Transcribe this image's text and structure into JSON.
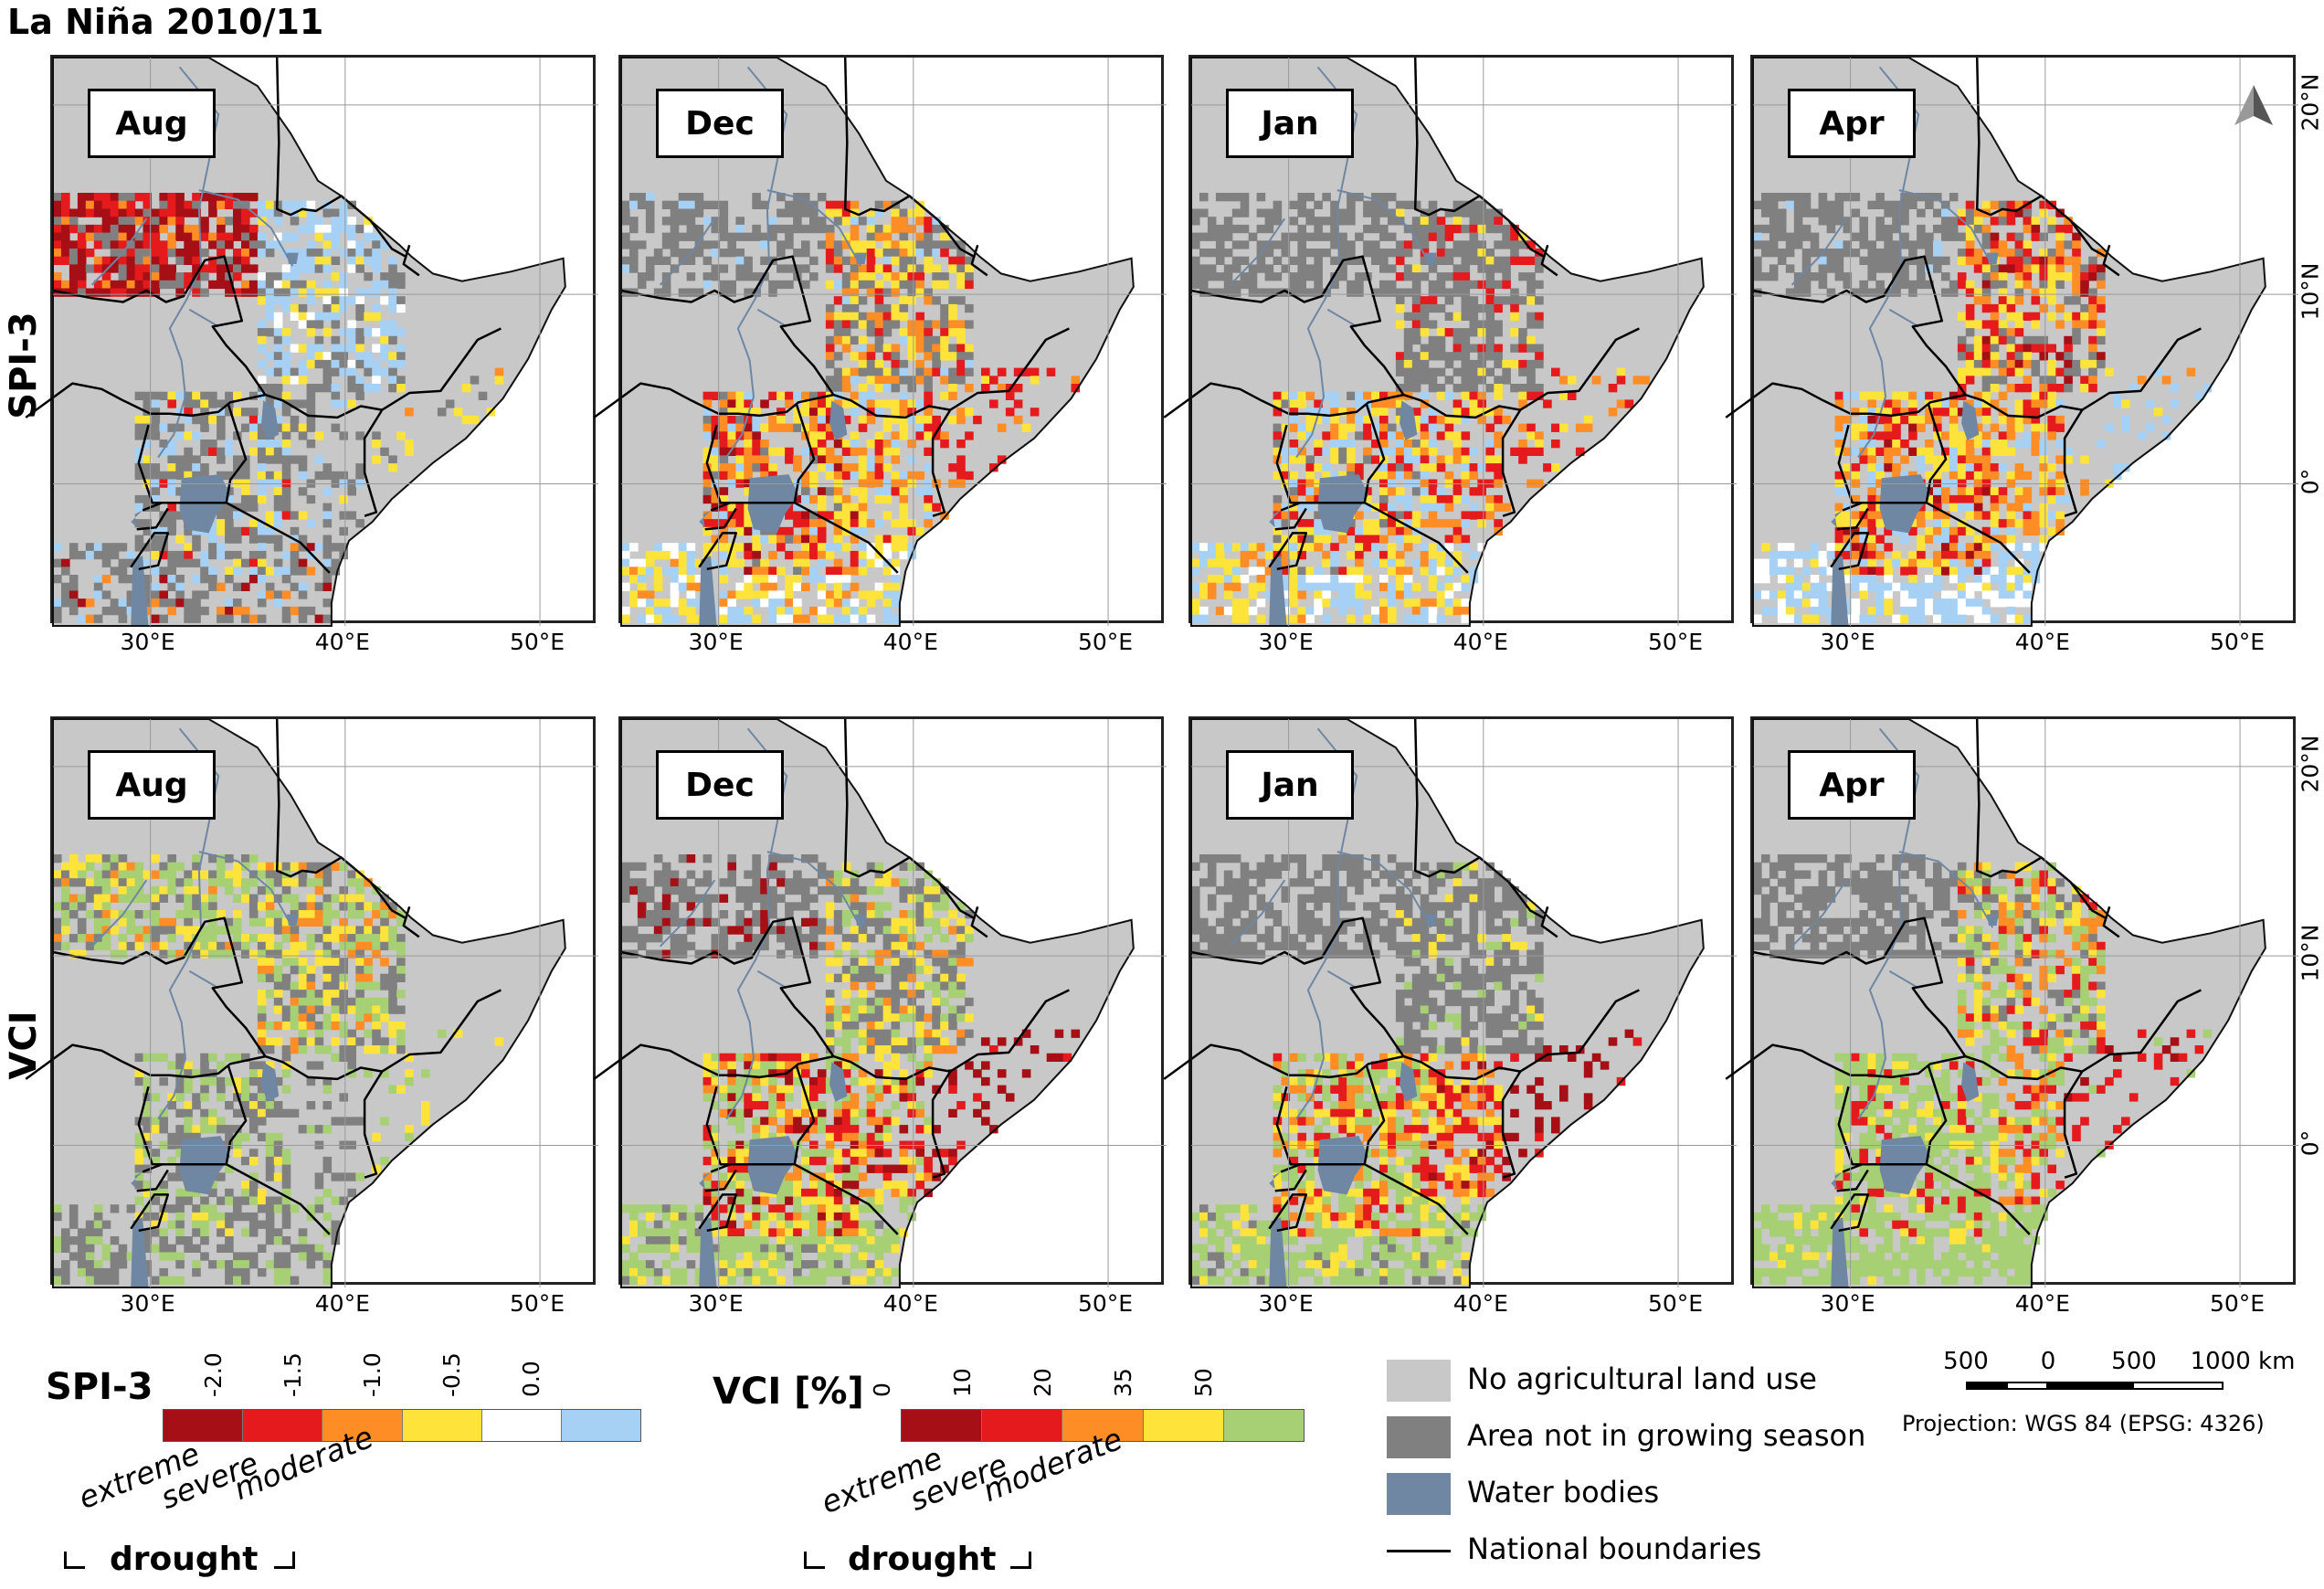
{
  "title": "La Niña 2010/11",
  "rows": [
    {
      "label": "SPI-3",
      "key": "spi"
    },
    {
      "label": "VCI",
      "key": "vci"
    }
  ],
  "months": [
    "Aug",
    "Dec",
    "Jan",
    "Apr"
  ],
  "lon_ticks": [
    "30°E",
    "40°E",
    "50°E"
  ],
  "lat_ticks": [
    "20°N",
    "10°N",
    "0°"
  ],
  "map_extent": {
    "lon_min": 25,
    "lon_max": 53,
    "lat_min": -7.5,
    "lat_max": 22.5
  },
  "colors": {
    "no_agri": "#c8c8c8",
    "not_growing": "#808080",
    "water": "#6f87a3",
    "extreme": "#a50f15",
    "severe": "#e41a1c",
    "moderate": "#fd8d24",
    "mild": "#fee33a",
    "normal": "#ffffff",
    "wet": "#a6d1f5",
    "vci_high": "#a7cf74"
  },
  "spi_legend": {
    "title": "SPI-3",
    "ticks": [
      "-2.0",
      "-1.5",
      "-1.0",
      "-0.5",
      "0.0"
    ],
    "classes": [
      "extreme",
      "severe",
      "moderate"
    ],
    "group_label": "drought",
    "bin_colors": [
      "#a50f15",
      "#e41a1c",
      "#fd8d24",
      "#fee33a",
      "#ffffff",
      "#a6d1f5"
    ]
  },
  "vci_legend": {
    "title": "VCI [%]",
    "ticks": [
      "0",
      "10",
      "20",
      "35",
      "50"
    ],
    "classes": [
      "extreme",
      "severe",
      "moderate"
    ],
    "group_label": "drought",
    "bin_colors": [
      "#a50f15",
      "#e41a1c",
      "#fd8d24",
      "#fee33a",
      "#a7cf74"
    ]
  },
  "category_legend": [
    {
      "label": "No agricultural land use",
      "color": "#c8c8c8",
      "kind": "swatch"
    },
    {
      "label": "Area not in growing season",
      "color": "#808080",
      "kind": "swatch"
    },
    {
      "label": "Water bodies",
      "color": "#6f87a3",
      "kind": "swatch"
    },
    {
      "label": "National boundaries",
      "color": "#000000",
      "kind": "line"
    }
  ],
  "scale_bar": {
    "labels": [
      "500",
      "0",
      "500",
      "1000 km"
    ]
  },
  "projection": "Projection: WGS 84 (EPSG: 4326)"
}
